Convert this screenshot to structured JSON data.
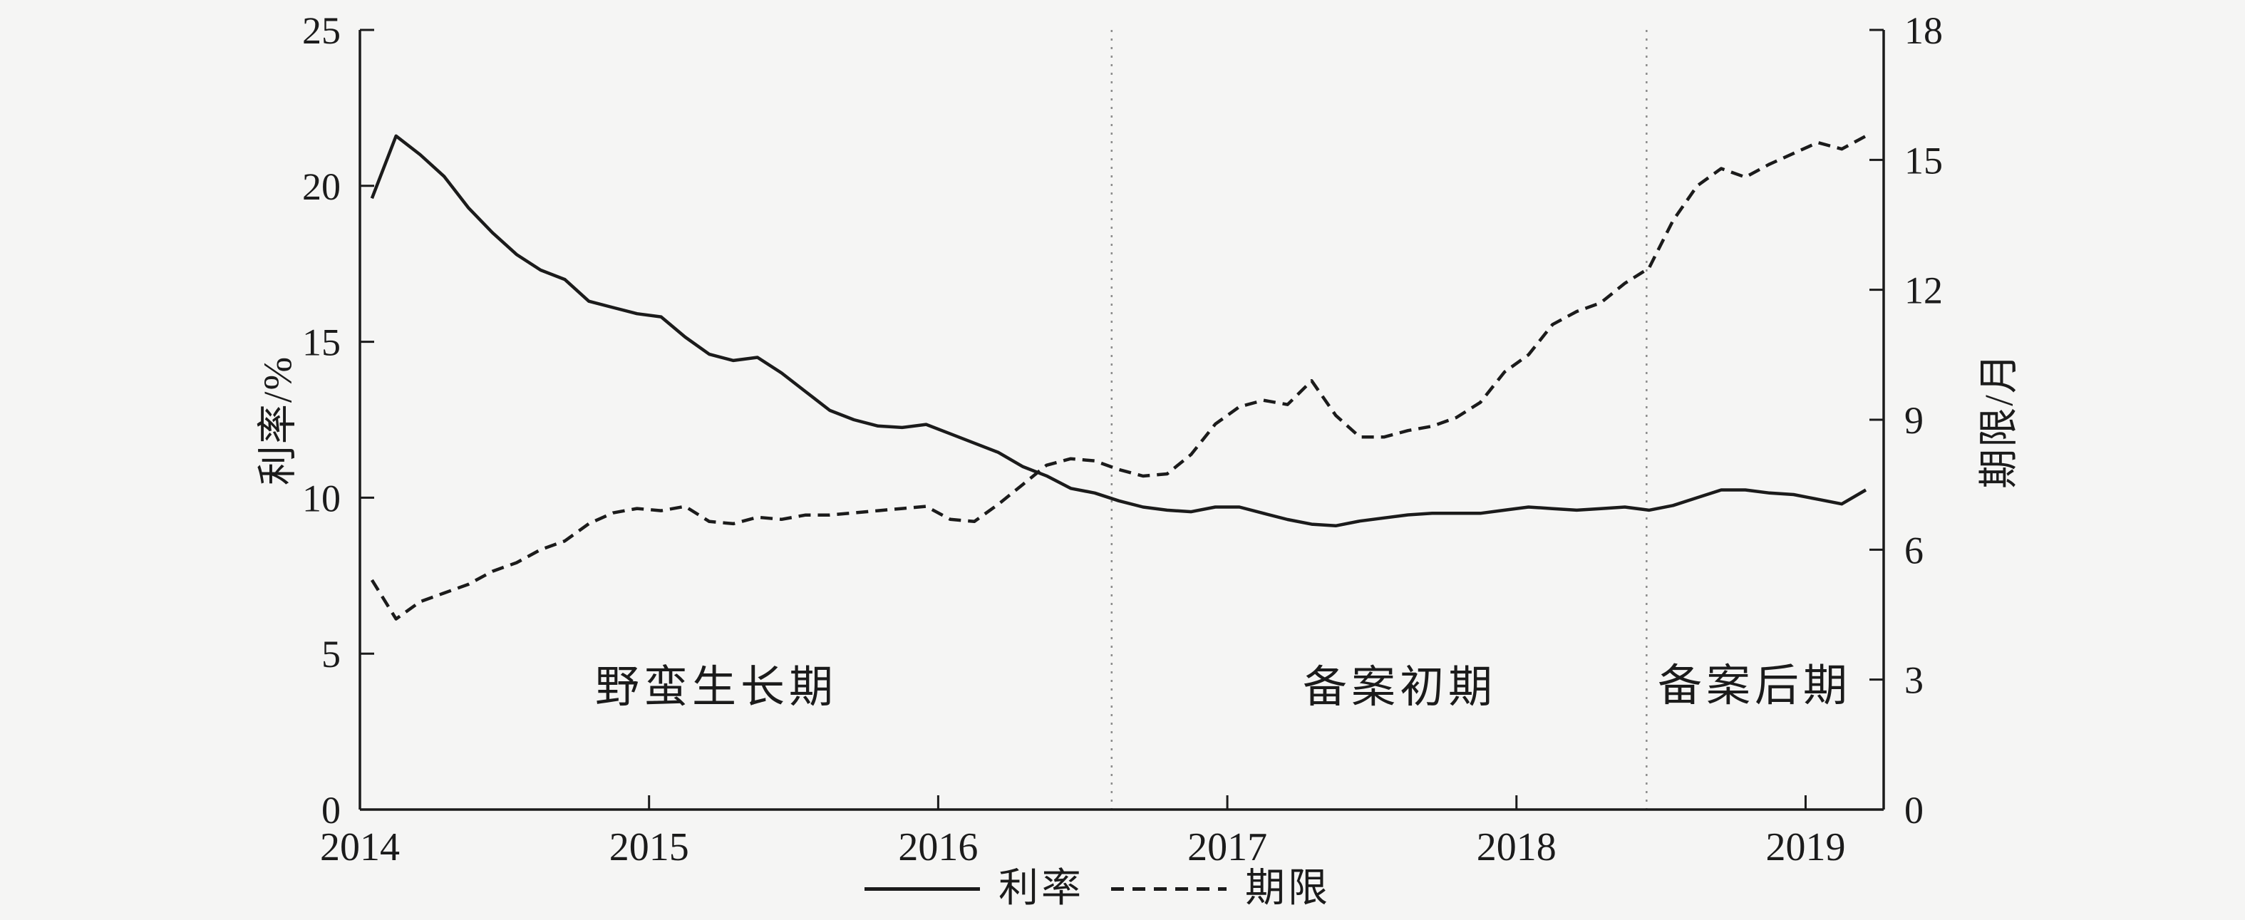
{
  "background_color": "#f5f5f4",
  "ink_color": "#1b1b1b",
  "divider_color": "#8c8c8c",
  "chart_data": {
    "type": "line",
    "title": "",
    "xlabel": "",
    "x_tick_labels": [
      "2014",
      "2015",
      "2016",
      "2017",
      "2018",
      "2019"
    ],
    "x_range_years": [
      2014.0,
      2019.27
    ],
    "y_left": {
      "label": "利率/%",
      "min": 0,
      "max": 25,
      "ticks": [
        0,
        5,
        10,
        15,
        20,
        25
      ]
    },
    "y_right": {
      "label": "期限/月",
      "min": 0,
      "max": 18,
      "ticks": [
        0,
        3,
        6,
        9,
        12,
        15,
        18
      ]
    },
    "grid": false,
    "months": [
      "2014-01",
      "2014-02",
      "2014-03",
      "2014-04",
      "2014-05",
      "2014-06",
      "2014-07",
      "2014-08",
      "2014-09",
      "2014-10",
      "2014-11",
      "2014-12",
      "2015-01",
      "2015-02",
      "2015-03",
      "2015-04",
      "2015-05",
      "2015-06",
      "2015-07",
      "2015-08",
      "2015-09",
      "2015-10",
      "2015-11",
      "2015-12",
      "2016-01",
      "2016-02",
      "2016-03",
      "2016-04",
      "2016-05",
      "2016-06",
      "2016-07",
      "2016-08",
      "2016-09",
      "2016-10",
      "2016-11",
      "2016-12",
      "2017-01",
      "2017-02",
      "2017-03",
      "2017-04",
      "2017-05",
      "2017-06",
      "2017-07",
      "2017-08",
      "2017-09",
      "2017-10",
      "2017-11",
      "2017-12",
      "2018-01",
      "2018-02",
      "2018-03",
      "2018-04",
      "2018-05",
      "2018-06",
      "2018-07",
      "2018-08",
      "2018-09",
      "2018-10",
      "2018-11",
      "2018-12",
      "2019-01",
      "2019-02",
      "2019-03"
    ],
    "series": [
      {
        "name": "利率",
        "axis": "left",
        "style": "solid",
        "unit": "%",
        "values": [
          19.6,
          21.6,
          21.0,
          20.3,
          19.3,
          18.5,
          17.8,
          17.3,
          17.0,
          16.3,
          16.1,
          15.9,
          15.8,
          15.15,
          14.6,
          14.4,
          14.5,
          14.0,
          13.4,
          12.8,
          12.5,
          12.3,
          12.25,
          12.35,
          12.05,
          11.75,
          11.45,
          11.0,
          10.7,
          10.3,
          10.15,
          9.9,
          9.7,
          9.6,
          9.55,
          9.7,
          9.7,
          9.5,
          9.3,
          9.15,
          9.1,
          9.25,
          9.35,
          9.45,
          9.5,
          9.5,
          9.5,
          9.6,
          9.7,
          9.65,
          9.6,
          9.65,
          9.7,
          9.6,
          9.75,
          10.0,
          10.25,
          10.25,
          10.15,
          10.1,
          9.95,
          9.8,
          10.25
        ]
      },
      {
        "name": "期限",
        "axis": "right",
        "style": "dashed",
        "unit": "月",
        "values": [
          5.3,
          4.4,
          4.8,
          5.0,
          5.2,
          5.5,
          5.7,
          6.0,
          6.2,
          6.6,
          6.85,
          6.95,
          6.9,
          7.0,
          6.65,
          6.6,
          6.75,
          6.7,
          6.8,
          6.8,
          6.85,
          6.9,
          6.95,
          7.0,
          6.7,
          6.65,
          7.05,
          7.5,
          7.95,
          8.1,
          8.05,
          7.85,
          7.7,
          7.75,
          8.2,
          8.9,
          9.3,
          9.45,
          9.35,
          9.9,
          9.1,
          8.6,
          8.6,
          8.75,
          8.85,
          9.05,
          9.4,
          10.1,
          10.5,
          11.2,
          11.5,
          11.7,
          12.15,
          12.5,
          13.6,
          14.4,
          14.8,
          14.6,
          14.9,
          15.15,
          15.4,
          15.25,
          15.55
        ]
      }
    ],
    "dividers_year": [
      2016.6,
      2018.45
    ],
    "annotations": [
      {
        "label": "野蛮生长期",
        "x_year": 2015.23,
        "y_left": 4.05
      },
      {
        "label": "备案初期",
        "x_year": 2017.59,
        "y_left": 4.05
      },
      {
        "label": "备案后期",
        "x_year": 2018.82,
        "y_left": 4.1
      }
    ],
    "legend_position": "bottom-center"
  },
  "legend": {
    "items": [
      {
        "label": "利率",
        "style": "solid"
      },
      {
        "label": "期限",
        "style": "dashed"
      }
    ]
  },
  "axis_titles": {
    "left": "利率/%",
    "right": "期限/月"
  }
}
